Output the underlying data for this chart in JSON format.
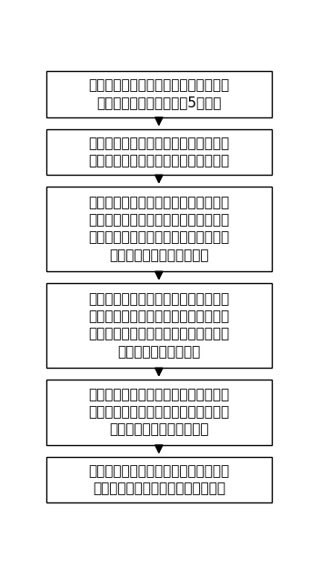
{
  "boxes": [
    {
      "text": "采用初始型面的成型阴极进行叶片精密\n电解成型加工，获得至少5片叶片",
      "lines": 2
    },
    {
      "text": "进行叶片的数字化检测，挑选变形量处\n于该批叶片中差值的叶片做为基准叶片",
      "lines": 2
    },
    {
      "text": "将基准叶片的点云文件导入初始型面的\n成型阴极模型中，将点云文件的数据点\n和成型阴极模型数据点进行分区优化计\n算，生成新的阴极型面模型",
      "lines": 4
    },
    {
      "text": "采用初始型面的成型阴极进行多次叶片\n电解成型加工，得到该批叶片变形情况\n，统计变形量的离散度，在变形量分布\n区间内选取最大变形量",
      "lines": 4
    },
    {
      "text": "将最大变形量迭代入新的阴极型面模型\n中，按照叶片设计分别对新的阴极型面\n的截面线进行变形量的叠加",
      "lines": 3
    },
    {
      "text": "根据叠加后的截面数据生成阴极型面所\n需的截面线，生成优化后的阴极型面",
      "lines": 2
    }
  ],
  "box_color": "#ffffff",
  "box_edge_color": "#000000",
  "arrow_color": "#000000",
  "text_color": "#000000",
  "background_color": "#ffffff",
  "font_size": 11,
  "fig_width": 3.41,
  "fig_height": 6.24,
  "dpi": 100
}
